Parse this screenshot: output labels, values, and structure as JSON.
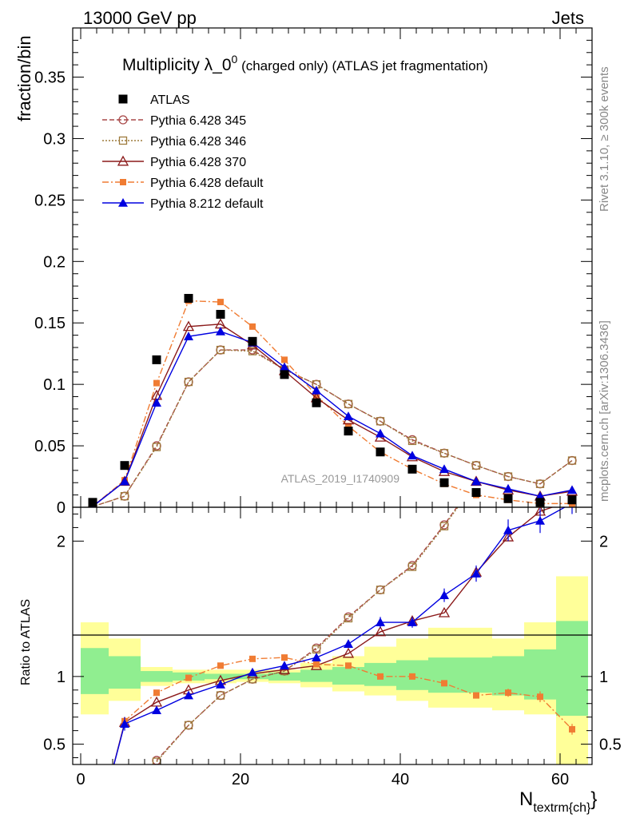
{
  "header": {
    "left": "13000 GeV pp",
    "right": "Jets"
  },
  "side_labels": {
    "rivet": "Rivet 3.1.10, ≥ 300k events",
    "mcplots": "mcplots.cern.ch [arXiv:1306.3436]"
  },
  "watermark": "ATLAS_2019_I1740909",
  "chart_data": [
    {
      "panel": "main",
      "type": "line",
      "title": "Multiplicity λ_0⁰ (charged only) (ATLAS jet fragmentation)",
      "title_main": "Multiplicity λ_0",
      "title_sup": "0",
      "title_rest": " (charged only) (ATLAS jet fragmentation)",
      "ylabel": "fraction/bin",
      "xlabel": "N",
      "xlabel_sub": "textrm{ch}",
      "xlabel_close": "}",
      "xlim": [
        -1,
        64
      ],
      "ylim": [
        0,
        0.39
      ],
      "yticks": [
        0,
        0.05,
        0.1,
        0.15,
        0.2,
        0.25,
        0.3,
        0.35
      ],
      "ytick_labels": [
        "0",
        "0.05",
        "0.1",
        "0.15",
        "0.2",
        "0.25",
        "0.3",
        "0.35"
      ],
      "legend_position": "top-left",
      "series": [
        {
          "name": "ATLAS",
          "color": "#000000",
          "marker": "square-filled",
          "line": "none",
          "x": [
            1.5,
            5.5,
            9.5,
            13.5,
            17.5,
            21.5,
            25.5,
            29.5,
            33.5,
            37.5,
            41.5,
            45.5,
            49.5,
            53.5,
            57.5,
            61.5
          ],
          "y": [
            0.004,
            0.034,
            0.12,
            0.17,
            0.157,
            0.135,
            0.108,
            0.085,
            0.062,
            0.045,
            0.031,
            0.02,
            0.012,
            0.007,
            0.004,
            0.006
          ]
        },
        {
          "name": "Pythia 6.428 345",
          "color": "#a84848",
          "marker": "circle-open",
          "line": "dashed",
          "x": [
            1.5,
            5.5,
            9.5,
            13.5,
            17.5,
            21.5,
            25.5,
            29.5,
            33.5,
            37.5,
            41.5,
            45.5,
            49.5,
            53.5,
            57.5,
            61.5
          ],
          "y": [
            0.0005,
            0.009,
            0.05,
            0.102,
            0.128,
            0.128,
            0.112,
            0.1,
            0.084,
            0.07,
            0.055,
            0.044,
            0.034,
            0.025,
            0.019,
            0.038
          ]
        },
        {
          "name": "Pythia 6.428 346",
          "color": "#9e7b3c",
          "marker": "square-open",
          "line": "dotted",
          "x": [
            1.5,
            5.5,
            9.5,
            13.5,
            17.5,
            21.5,
            25.5,
            29.5,
            33.5,
            37.5,
            41.5,
            45.5,
            49.5,
            53.5,
            57.5,
            61.5
          ],
          "y": [
            0.0005,
            0.009,
            0.049,
            0.102,
            0.128,
            0.127,
            0.112,
            0.1,
            0.084,
            0.07,
            0.054,
            0.044,
            0.034,
            0.025,
            0.019,
            0.038
          ]
        },
        {
          "name": "Pythia 6.428 370",
          "color": "#8b1a1a",
          "marker": "triangle-open",
          "line": "solid",
          "x": [
            1.5,
            5.5,
            9.5,
            13.5,
            17.5,
            21.5,
            25.5,
            29.5,
            33.5,
            37.5,
            41.5,
            45.5,
            49.5,
            53.5,
            57.5,
            61.5
          ],
          "y": [
            0.0008,
            0.021,
            0.091,
            0.147,
            0.149,
            0.132,
            0.111,
            0.089,
            0.071,
            0.057,
            0.041,
            0.029,
            0.021,
            0.014,
            0.009,
            0.013
          ]
        },
        {
          "name": "Pythia 6.428 default",
          "color": "#f07c33",
          "marker": "square-filled-small",
          "line": "dashdot",
          "x": [
            1.5,
            5.5,
            9.5,
            13.5,
            17.5,
            21.5,
            25.5,
            29.5,
            33.5,
            37.5,
            41.5,
            45.5,
            49.5,
            53.5,
            57.5,
            61.5
          ],
          "y": [
            0.0008,
            0.022,
            0.101,
            0.168,
            0.167,
            0.147,
            0.12,
            0.091,
            0.066,
            0.045,
            0.031,
            0.019,
            0.01,
            0.006,
            0.003,
            0.003
          ]
        },
        {
          "name": "Pythia 8.212 default",
          "color": "#0000e0",
          "marker": "triangle-filled",
          "line": "solid",
          "x": [
            1.5,
            5.5,
            9.5,
            13.5,
            17.5,
            21.5,
            25.5,
            29.5,
            33.5,
            37.5,
            41.5,
            45.5,
            49.5,
            53.5,
            57.5,
            61.5
          ],
          "y": [
            0.0006,
            0.021,
            0.085,
            0.139,
            0.143,
            0.134,
            0.114,
            0.095,
            0.074,
            0.06,
            0.042,
            0.031,
            0.021,
            0.015,
            0.009,
            0.014
          ]
        }
      ]
    },
    {
      "panel": "ratio",
      "type": "line",
      "ylabel": "Ratio to ATLAS",
      "xlim": [
        -1,
        64
      ],
      "ylim": [
        0.35,
        2.25
      ],
      "xticks": [
        0,
        20,
        40,
        60
      ],
      "xtick_labels": [
        "0",
        "20",
        "40",
        "60"
      ],
      "yticks": [
        0.5,
        1,
        2
      ],
      "ytick_labels": [
        "0.5",
        "1",
        "2"
      ],
      "bands": {
        "bin_edges": [
          0,
          3.5,
          7.5,
          11.5,
          15.5,
          19.5,
          23.5,
          27.5,
          31.5,
          35.5,
          39.5,
          43.5,
          47.5,
          51.5,
          55.5,
          59.5,
          63.5
        ],
        "yellow_color": "#ffff99",
        "green_color": "#90ee90",
        "yellow_low": [
          0.72,
          0.82,
          0.93,
          0.95,
          0.95,
          0.96,
          0.95,
          0.92,
          0.89,
          0.86,
          0.82,
          0.77,
          0.77,
          0.75,
          0.72,
          0.35
        ],
        "yellow_high": [
          1.4,
          1.28,
          1.07,
          1.05,
          1.05,
          1.05,
          1.05,
          1.1,
          1.15,
          1.22,
          1.28,
          1.36,
          1.36,
          1.28,
          1.4,
          1.74
        ],
        "green_low": [
          0.87,
          0.91,
          0.96,
          0.97,
          0.98,
          0.98,
          0.97,
          0.96,
          0.94,
          0.93,
          0.9,
          0.88,
          0.88,
          0.86,
          0.83,
          0.71
        ],
        "green_high": [
          1.21,
          1.15,
          1.04,
          1.03,
          1.02,
          1.02,
          1.03,
          1.05,
          1.07,
          1.1,
          1.12,
          1.14,
          1.14,
          1.15,
          1.2,
          1.41
        ]
      },
      "series": [
        {
          "name": "Pythia 6.428 345",
          "color": "#a84848",
          "marker": "circle-open",
          "line": "dashed",
          "x": [
            9.5,
            13.5,
            17.5,
            21.5,
            25.5,
            29.5,
            33.5,
            37.5,
            41.5,
            45.5,
            49.5
          ],
          "y": [
            0.38,
            0.64,
            0.86,
            0.98,
            1.04,
            1.21,
            1.44,
            1.64,
            1.82,
            2.12,
            2.45
          ]
        },
        {
          "name": "Pythia 6.428 346",
          "color": "#9e7b3c",
          "marker": "square-open",
          "line": "dotted",
          "x": [
            9.5,
            13.5,
            17.5,
            21.5,
            25.5,
            29.5,
            33.5,
            37.5,
            41.5,
            45.5,
            49.5
          ],
          "y": [
            0.37,
            0.64,
            0.86,
            0.98,
            1.04,
            1.2,
            1.43,
            1.64,
            1.81,
            2.11,
            2.44
          ]
        },
        {
          "name": "Pythia 6.428 370",
          "color": "#8b1a1a",
          "marker": "triangle-open",
          "line": "solid",
          "x": [
            3.5,
            5.5,
            9.5,
            13.5,
            17.5,
            21.5,
            25.5,
            29.5,
            33.5,
            37.5,
            41.5,
            45.5,
            49.5,
            53.5,
            57.5,
            61.5
          ],
          "y": [
            0.2,
            0.66,
            0.81,
            0.9,
            0.97,
            1.02,
            1.05,
            1.08,
            1.17,
            1.33,
            1.41,
            1.47,
            1.77,
            2.03,
            2.22,
            2.3
          ]
        },
        {
          "name": "Pythia 6.428 default",
          "color": "#f07c33",
          "marker": "square-filled-small",
          "line": "dashdot",
          "x": [
            5.5,
            9.5,
            13.5,
            17.5,
            21.5,
            25.5,
            29.5,
            33.5,
            37.5,
            41.5,
            45.5,
            49.5,
            53.5,
            57.5,
            61.5
          ],
          "y": [
            0.67,
            0.88,
            0.99,
            1.08,
            1.13,
            1.14,
            1.09,
            1.08,
            1.0,
            1.0,
            0.95,
            0.86,
            0.88,
            0.85,
            0.61
          ],
          "err": [
            0,
            0,
            0,
            0,
            0,
            0,
            0,
            0,
            0,
            0,
            0.02,
            0.02,
            0.03,
            0.04,
            0.04
          ]
        },
        {
          "name": "Pythia 8.212 default",
          "color": "#0000e0",
          "marker": "triangle-filled",
          "line": "solid",
          "x": [
            3.5,
            5.5,
            9.5,
            13.5,
            17.5,
            21.5,
            25.5,
            29.5,
            33.5,
            37.5,
            41.5,
            45.5,
            49.5,
            53.5,
            57.5,
            61.5
          ],
          "y": [
            0.2,
            0.65,
            0.75,
            0.86,
            0.94,
            1.03,
            1.08,
            1.14,
            1.24,
            1.4,
            1.4,
            1.6,
            1.76,
            2.08,
            2.15,
            2.28
          ],
          "err": [
            0,
            0.05,
            0.02,
            0.01,
            0.01,
            0.01,
            0.01,
            0.02,
            0.03,
            0.04,
            0.04,
            0.05,
            0.06,
            0.08,
            0.09,
            0.08
          ]
        }
      ]
    }
  ]
}
